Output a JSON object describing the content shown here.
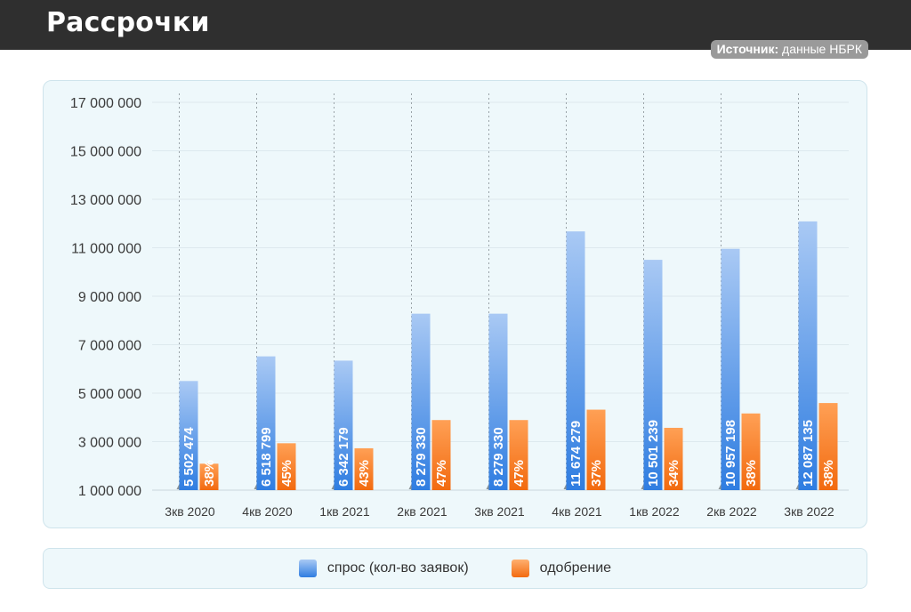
{
  "header": {
    "title": "Рассрочки"
  },
  "source": {
    "label": "Источник:",
    "text": "данные НБРК"
  },
  "legend": {
    "demand": "спрос (кол-во заявок)",
    "approval": "одобрение"
  },
  "colors": {
    "demand_top": "#a9c9f4",
    "demand_bottom": "#2f7de1",
    "approval_top": "#ffb070",
    "approval_bottom": "#f26a0f"
  },
  "chart_data": {
    "type": "bar",
    "categories": [
      "3кв 2020",
      "4кв 2020",
      "1кв 2021",
      "2кв 2021",
      "3кв 2021",
      "4кв 2021",
      "1кв 2022",
      "2кв 2022",
      "3кв 2022"
    ],
    "series": [
      {
        "name": "спрос (кол-во заявок)",
        "values": [
          5502474,
          6518799,
          6342179,
          8279330,
          8279330,
          11674279,
          10501239,
          10957198,
          12087135
        ],
        "labels": [
          "5 502 474",
          "6 518 799",
          "6 342 179",
          "8 279 330",
          "8 279 330",
          "11 674 279",
          "10 501 239",
          "10 957 198",
          "12 087 135"
        ]
      },
      {
        "name": "одобрение",
        "values": [
          2090940,
          2933460,
          2727137,
          3891285,
          3891285,
          4319483,
          3570421,
          4163735,
          4593111
        ],
        "labels": [
          "38%",
          "45%",
          "43%",
          "47%",
          "47%",
          "37%",
          "34%",
          "38%",
          "38%"
        ]
      }
    ],
    "y_ticks": [
      "17 000 000",
      "15 000 000",
      "13 000 000",
      "11 000 000",
      "9 000 000",
      "7 000 000",
      "5 000 000",
      "3 000 000",
      "1 000 000"
    ],
    "ylim": [
      1000000,
      17000000
    ],
    "grid": true,
    "legend_position": "bottom"
  }
}
